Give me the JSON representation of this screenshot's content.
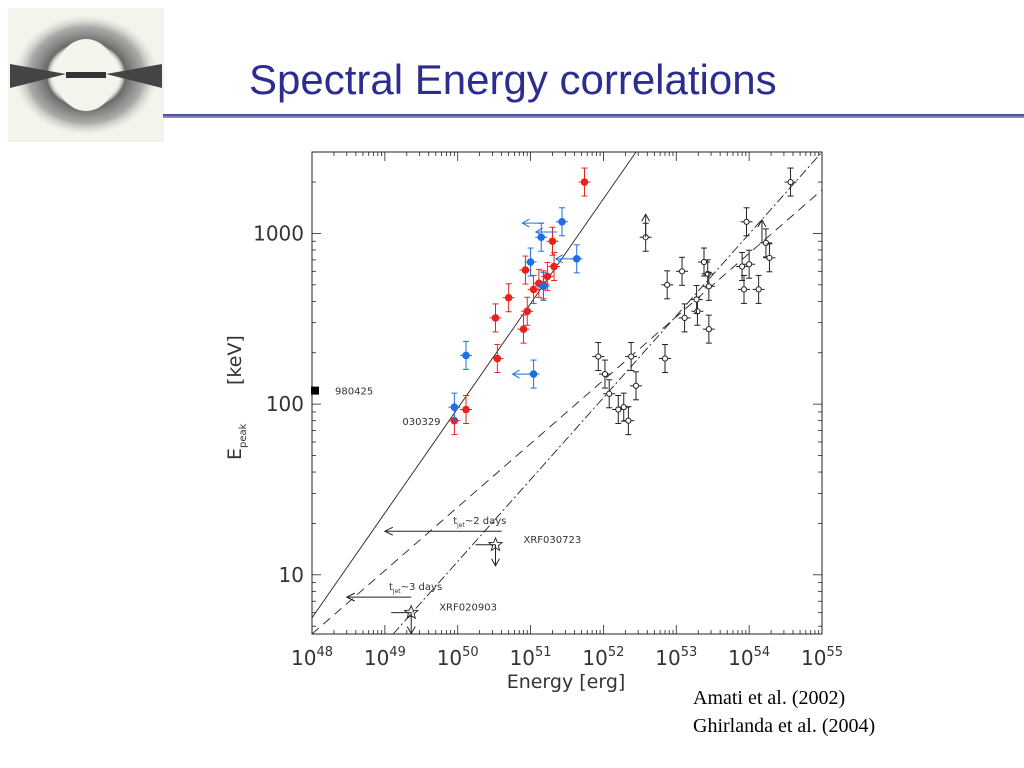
{
  "slide": {
    "title": "Spectral Energy correlations",
    "logo_icon": "gamma-ray-burst-jet-logo",
    "references": [
      "Amati et al. (2002)",
      "Ghirlanda et al. (2004)"
    ]
  },
  "chart_data": {
    "type": "scatter",
    "title": "",
    "xlabel": "Energy    [erg]",
    "ylabel_main": "E",
    "ylabel_sub": "peak",
    "ylabel_unit": "[keV]",
    "xscale": "log",
    "yscale": "log",
    "xlim": [
      1e+48,
      1e+55
    ],
    "ylim": [
      4.5,
      3000
    ],
    "grid": false,
    "x_ticks": [
      {
        "mantissa": "10",
        "exp": "48",
        "value": 1e+48
      },
      {
        "mantissa": "10",
        "exp": "49",
        "value": 1e+49
      },
      {
        "mantissa": "10",
        "exp": "50",
        "value": 1e+50
      },
      {
        "mantissa": "10",
        "exp": "51",
        "value": 1e+51
      },
      {
        "mantissa": "10",
        "exp": "52",
        "value": 1e+52
      },
      {
        "mantissa": "10",
        "exp": "53",
        "value": 1e+53
      },
      {
        "mantissa": "10",
        "exp": "54",
        "value": 1e+54
      },
      {
        "mantissa": "10",
        "exp": "55",
        "value": 1e+55
      }
    ],
    "y_ticks": [
      {
        "label": "10",
        "value": 10
      },
      {
        "label": "100",
        "value": 100
      },
      {
        "label": "1000",
        "value": 1000
      }
    ],
    "colors": {
      "red": "#e8231f",
      "blue": "#1f6fe0",
      "black": "#222222"
    },
    "series": [
      {
        "color": "red",
        "marker": "filled-circle",
        "points": [
          {
            "x": 9e+49,
            "y": 80
          },
          {
            "x": 1.3e+50,
            "y": 93
          },
          {
            "x": 3.5e+50,
            "y": 185
          },
          {
            "x": 3.3e+50,
            "y": 320
          },
          {
            "x": 5e+50,
            "y": 420
          },
          {
            "x": 8e+50,
            "y": 275
          },
          {
            "x": 9e+50,
            "y": 350
          },
          {
            "x": 8.5e+50,
            "y": 610
          },
          {
            "x": 1.1e+51,
            "y": 470
          },
          {
            "x": 1.3e+51,
            "y": 510
          },
          {
            "x": 1.5e+51,
            "y": 500
          },
          {
            "x": 1.7e+51,
            "y": 560
          },
          {
            "x": 2.1e+51,
            "y": 640
          },
          {
            "x": 2e+51,
            "y": 900
          },
          {
            "x": 5.5e+51,
            "y": 2000
          }
        ]
      },
      {
        "color": "blue",
        "marker": "filled-circle",
        "points": [
          {
            "x": 9e+49,
            "y": 96
          },
          {
            "x": 1.3e+50,
            "y": 193
          },
          {
            "x": 1.1e+51,
            "y": 150
          },
          {
            "x": 1e+51,
            "y": 680
          },
          {
            "x": 1.5e+51,
            "y": 490
          },
          {
            "x": 1.4e+51,
            "y": 950
          },
          {
            "x": 2.7e+51,
            "y": 1170
          },
          {
            "x": 4.3e+51,
            "y": 710
          }
        ]
      },
      {
        "color": "black",
        "marker": "open-circle",
        "points": [
          {
            "x": 1.6e+52,
            "y": 93
          },
          {
            "x": 1.9e+52,
            "y": 96
          },
          {
            "x": 1.2e+52,
            "y": 115
          },
          {
            "x": 1.05e+52,
            "y": 150
          },
          {
            "x": 8.5e+51,
            "y": 190
          },
          {
            "x": 2.4e+52,
            "y": 190
          },
          {
            "x": 2.8e+52,
            "y": 128
          },
          {
            "x": 2.2e+52,
            "y": 80
          },
          {
            "x": 3.8e+52,
            "y": 950
          },
          {
            "x": 7.5e+52,
            "y": 500
          },
          {
            "x": 1.2e+53,
            "y": 600
          },
          {
            "x": 7e+52,
            "y": 185
          },
          {
            "x": 1.3e+53,
            "y": 320
          },
          {
            "x": 1.95e+53,
            "y": 350
          },
          {
            "x": 1.9e+53,
            "y": 410
          },
          {
            "x": 2.4e+53,
            "y": 680
          },
          {
            "x": 2.7e+53,
            "y": 580
          },
          {
            "x": 2.8e+53,
            "y": 490
          },
          {
            "x": 2.8e+53,
            "y": 275
          },
          {
            "x": 8e+53,
            "y": 640
          },
          {
            "x": 1e+54,
            "y": 660
          },
          {
            "x": 8.5e+53,
            "y": 470
          },
          {
            "x": 1.35e+54,
            "y": 470
          },
          {
            "x": 9.2e+53,
            "y": 1170
          },
          {
            "x": 1.7e+54,
            "y": 880
          },
          {
            "x": 1.9e+54,
            "y": 720
          },
          {
            "x": 3.7e+54,
            "y": 2000
          }
        ]
      }
    ],
    "labeled_points": [
      {
        "label": "980425",
        "x": 1.1e+48,
        "y": 120,
        "marker": "filled-square"
      },
      {
        "label": "030329",
        "x": 9e+49,
        "y": 96
      },
      {
        "label": "XRF030723",
        "x": 3.3e+50,
        "y": 15,
        "marker": "star"
      },
      {
        "label": "XRF020903",
        "x": 2.3e+49,
        "y": 6,
        "marker": "star"
      }
    ],
    "fit_lines": [
      {
        "style": "solid",
        "points": [
          [
            1e+48,
            5.6
          ],
          [
            2.8e+52,
            3000
          ]
        ]
      },
      {
        "style": "dashed",
        "points": [
          [
            1e+48,
            4.5
          ],
          [
            1e+55,
            1800
          ]
        ]
      },
      {
        "style": "dash-dot",
        "points": [
          [
            1.3e+49,
            4.5
          ],
          [
            1e+55,
            3000
          ]
        ]
      }
    ],
    "annotations": [
      {
        "text": "t",
        "sub": "jet",
        "suffix": "~2 days",
        "from_x": 4e+50,
        "to_x": 1e+49,
        "y": 18
      },
      {
        "text": "t",
        "sub": "jet",
        "suffix": "~3 days",
        "from_x": 2.3e+49,
        "to_x": 3e+48,
        "y": 7.4
      }
    ]
  }
}
